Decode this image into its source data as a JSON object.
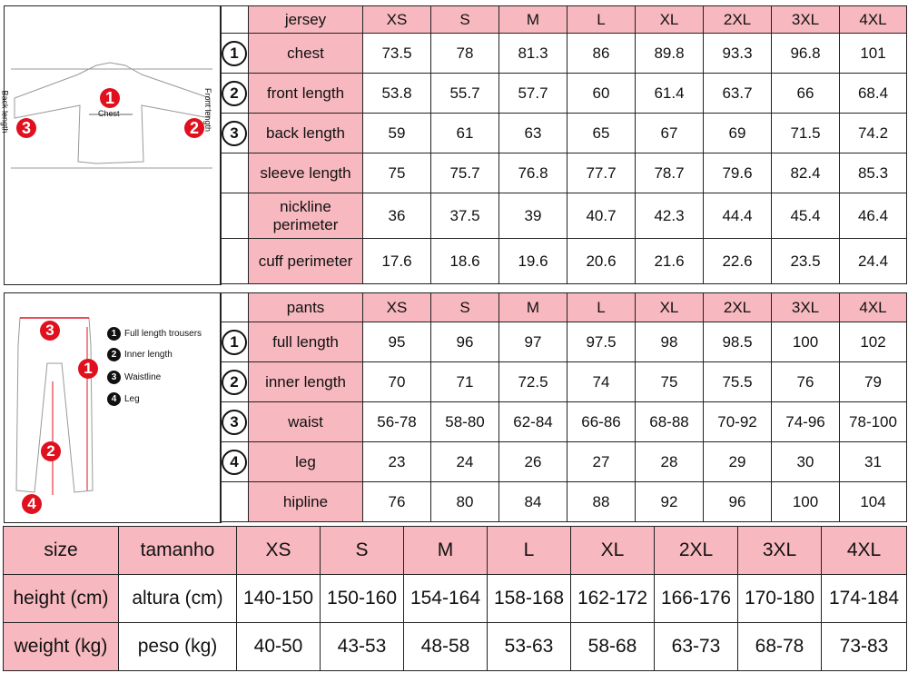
{
  "jersey": {
    "header": [
      "jersey",
      "XS",
      "S",
      "M",
      "L",
      "XL",
      "2XL",
      "3XL",
      "4XL"
    ],
    "rows": [
      {
        "num": "1",
        "label": "chest",
        "values": [
          "73.5",
          "78",
          "81.3",
          "86",
          "89.8",
          "93.3",
          "96.8",
          "101"
        ]
      },
      {
        "num": "2",
        "label": "front length",
        "values": [
          "53.8",
          "55.7",
          "57.7",
          "60",
          "61.4",
          "63.7",
          "66",
          "68.4"
        ]
      },
      {
        "num": "3",
        "label": "back length",
        "values": [
          "59",
          "61",
          "63",
          "65",
          "67",
          "69",
          "71.5",
          "74.2"
        ]
      },
      {
        "num": "",
        "label": "sleeve length",
        "values": [
          "75",
          "75.7",
          "76.8",
          "77.7",
          "78.7",
          "79.6",
          "82.4",
          "85.3"
        ]
      },
      {
        "num": "",
        "label": "nickline perimeter",
        "values": [
          "36",
          "37.5",
          "39",
          "40.7",
          "42.3",
          "44.4",
          "45.4",
          "46.4"
        ]
      },
      {
        "num": "",
        "label": "cuff perimeter",
        "values": [
          "17.6",
          "18.6",
          "19.6",
          "20.6",
          "21.6",
          "22.6",
          "23.5",
          "24.4"
        ]
      }
    ],
    "diagram": {
      "back_length": "Back length",
      "front_length": "Front length",
      "chest": "Chest",
      "m1": "1",
      "m2": "2",
      "m3": "3"
    }
  },
  "pants": {
    "header": [
      "pants",
      "XS",
      "S",
      "M",
      "L",
      "XL",
      "2XL",
      "3XL",
      "4XL"
    ],
    "rows": [
      {
        "num": "1",
        "label": "full length",
        "values": [
          "95",
          "96",
          "97",
          "97.5",
          "98",
          "98.5",
          "100",
          "102"
        ]
      },
      {
        "num": "2",
        "label": "inner length",
        "values": [
          "70",
          "71",
          "72.5",
          "74",
          "75",
          "75.5",
          "76",
          "79"
        ]
      },
      {
        "num": "3",
        "label": "waist",
        "values": [
          "56-78",
          "58-80",
          "62-84",
          "66-86",
          "68-88",
          "70-92",
          "74-96",
          "78-100"
        ]
      },
      {
        "num": "4",
        "label": "leg",
        "values": [
          "23",
          "24",
          "26",
          "27",
          "28",
          "29",
          "30",
          "31"
        ]
      },
      {
        "num": "",
        "label": "hipline",
        "values": [
          "76",
          "80",
          "84",
          "88",
          "92",
          "96",
          "100",
          "104"
        ]
      }
    ],
    "legend": [
      {
        "num": "1",
        "text": "Full length trousers"
      },
      {
        "num": "2",
        "text": "Inner length"
      },
      {
        "num": "3",
        "text": "Waistline"
      },
      {
        "num": "4",
        "text": "Leg"
      }
    ],
    "markers": {
      "m1": "1",
      "m2": "2",
      "m3": "3",
      "m4": "4"
    }
  },
  "size": {
    "header": [
      "size",
      "tamanho",
      "XS",
      "S",
      "M",
      "L",
      "XL",
      "2XL",
      "3XL",
      "4XL"
    ],
    "rows": [
      {
        "en": "height (cm)",
        "pt": "altura (cm)",
        "values": [
          "140-150",
          "150-160",
          "154-164",
          "158-168",
          "162-172",
          "166-176",
          "170-180",
          "174-184"
        ]
      },
      {
        "en": "weight (kg)",
        "pt": "peso (kg)",
        "values": [
          "40-50",
          "43-53",
          "48-58",
          "53-63",
          "58-68",
          "63-73",
          "68-78",
          "73-83"
        ]
      }
    ]
  },
  "colors": {
    "header_bg": "#f7b8bf",
    "marker": "#e0101e"
  }
}
